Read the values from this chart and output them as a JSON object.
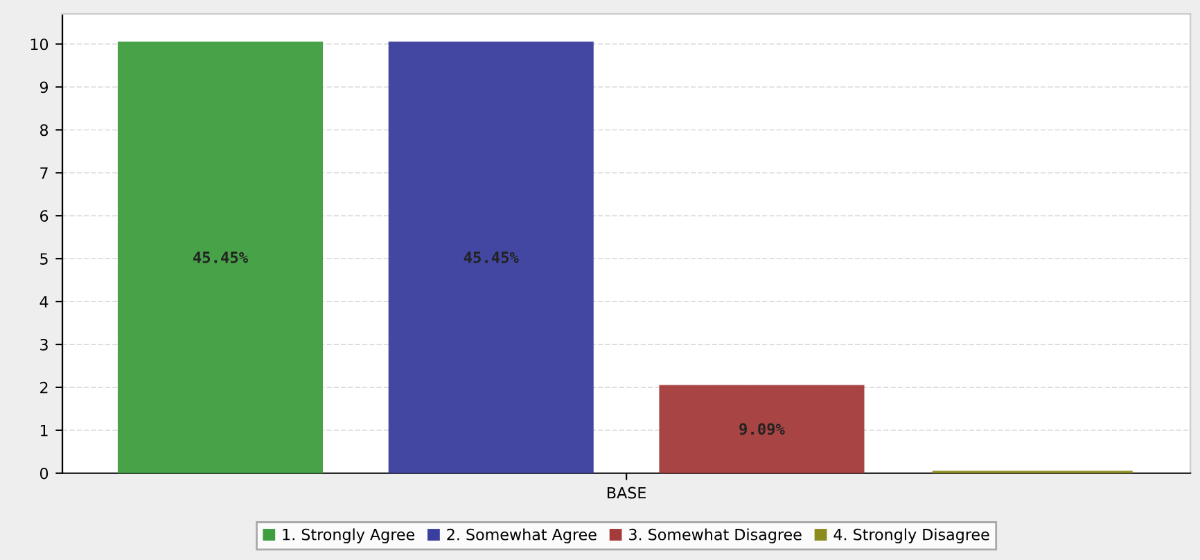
{
  "chart_data": {
    "type": "bar",
    "categories": [
      "BASE"
    ],
    "series": [
      {
        "name": "1. Strongly Agree",
        "color": "#3f9e3f",
        "values": [
          10
        ]
      },
      {
        "name": "2. Somewhat Agree",
        "color": "#3a3e9e",
        "values": [
          10
        ]
      },
      {
        "name": "3. Somewhat Disagree",
        "color": "#a43a3a",
        "values": [
          2
        ]
      },
      {
        "name": "4. Strongly Disagree",
        "color": "#8c8c1e",
        "values": [
          0
        ]
      }
    ],
    "annotations": [
      "45.45%",
      "45.45%",
      "9.09%"
    ],
    "ylim": [
      0,
      10.7
    ],
    "yticks": [
      0,
      1,
      2,
      3,
      4,
      5,
      6,
      7,
      8,
      9,
      10
    ],
    "grid": "y",
    "legend": "bottom"
  }
}
